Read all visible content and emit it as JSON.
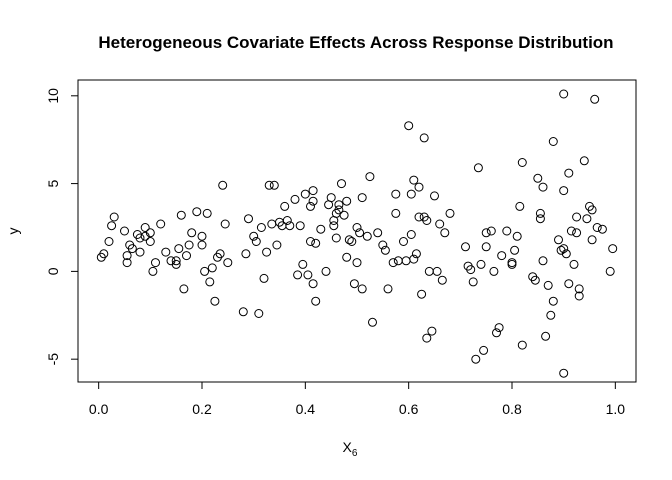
{
  "chart_data": {
    "type": "scatter",
    "title": "Heterogeneous Covariate Effects Across Response Distribution",
    "xlabel": "X",
    "xlabel_subscript": "6",
    "ylabel": "y",
    "xlim": [
      -0.04,
      1.04
    ],
    "ylim": [
      -6.3,
      10.9
    ],
    "xticks": [
      0.0,
      0.2,
      0.4,
      0.6,
      0.8,
      1.0
    ],
    "xtick_labels": [
      "0.0",
      "0.2",
      "0.4",
      "0.6",
      "0.8",
      "1.0"
    ],
    "yticks": [
      -5,
      0,
      5,
      10
    ],
    "ytick_labels": [
      "-5",
      "0",
      "5",
      "10"
    ],
    "grid": false,
    "points": [
      [
        0.005,
        0.8
      ],
      [
        0.01,
        1.0
      ],
      [
        0.02,
        1.7
      ],
      [
        0.025,
        2.6
      ],
      [
        0.03,
        3.1
      ],
      [
        0.05,
        2.3
      ],
      [
        0.055,
        0.5
      ],
      [
        0.055,
        0.9
      ],
      [
        0.06,
        1.5
      ],
      [
        0.065,
        1.3
      ],
      [
        0.075,
        2.1
      ],
      [
        0.08,
        1.9
      ],
      [
        0.08,
        1.1
      ],
      [
        0.09,
        2.0
      ],
      [
        0.09,
        2.5
      ],
      [
        0.1,
        1.7
      ],
      [
        0.1,
        2.2
      ],
      [
        0.105,
        0.0
      ],
      [
        0.11,
        0.5
      ],
      [
        0.12,
        2.7
      ],
      [
        0.13,
        1.1
      ],
      [
        0.14,
        0.6
      ],
      [
        0.15,
        0.6
      ],
      [
        0.15,
        0.4
      ],
      [
        0.155,
        1.3
      ],
      [
        0.16,
        3.2
      ],
      [
        0.165,
        -1.0
      ],
      [
        0.17,
        0.9
      ],
      [
        0.175,
        1.5
      ],
      [
        0.18,
        2.2
      ],
      [
        0.19,
        3.4
      ],
      [
        0.2,
        1.5
      ],
      [
        0.2,
        2.0
      ],
      [
        0.205,
        0.0
      ],
      [
        0.21,
        3.3
      ],
      [
        0.215,
        -0.6
      ],
      [
        0.22,
        0.2
      ],
      [
        0.225,
        -1.7
      ],
      [
        0.23,
        0.8
      ],
      [
        0.235,
        1.0
      ],
      [
        0.24,
        4.9
      ],
      [
        0.245,
        2.7
      ],
      [
        0.25,
        0.5
      ],
      [
        0.28,
        -2.3
      ],
      [
        0.285,
        1.0
      ],
      [
        0.29,
        3.0
      ],
      [
        0.3,
        2.0
      ],
      [
        0.305,
        1.7
      ],
      [
        0.31,
        -2.4
      ],
      [
        0.315,
        2.5
      ],
      [
        0.32,
        -0.4
      ],
      [
        0.325,
        1.1
      ],
      [
        0.33,
        4.9
      ],
      [
        0.335,
        2.7
      ],
      [
        0.34,
        4.9
      ],
      [
        0.345,
        1.5
      ],
      [
        0.35,
        2.8
      ],
      [
        0.355,
        2.6
      ],
      [
        0.36,
        3.7
      ],
      [
        0.365,
        2.9
      ],
      [
        0.37,
        2.6
      ],
      [
        0.38,
        4.1
      ],
      [
        0.385,
        -0.2
      ],
      [
        0.39,
        2.6
      ],
      [
        0.395,
        0.4
      ],
      [
        0.4,
        4.4
      ],
      [
        0.405,
        -0.2
      ],
      [
        0.41,
        1.7
      ],
      [
        0.41,
        3.7
      ],
      [
        0.415,
        4.6
      ],
      [
        0.415,
        4.0
      ],
      [
        0.415,
        -0.7
      ],
      [
        0.42,
        -1.7
      ],
      [
        0.42,
        1.6
      ],
      [
        0.43,
        2.4
      ],
      [
        0.44,
        0.0
      ],
      [
        0.445,
        3.8
      ],
      [
        0.45,
        4.2
      ],
      [
        0.455,
        2.9
      ],
      [
        0.455,
        2.6
      ],
      [
        0.46,
        1.9
      ],
      [
        0.46,
        3.3
      ],
      [
        0.465,
        3.5
      ],
      [
        0.465,
        3.8
      ],
      [
        0.47,
        5.0
      ],
      [
        0.475,
        3.2
      ],
      [
        0.48,
        0.8
      ],
      [
        0.48,
        4.0
      ],
      [
        0.485,
        1.8
      ],
      [
        0.49,
        1.7
      ],
      [
        0.495,
        -0.7
      ],
      [
        0.5,
        0.5
      ],
      [
        0.5,
        2.5
      ],
      [
        0.505,
        2.2
      ],
      [
        0.51,
        -1.0
      ],
      [
        0.51,
        4.2
      ],
      [
        0.52,
        2.0
      ],
      [
        0.525,
        5.4
      ],
      [
        0.53,
        -2.9
      ],
      [
        0.54,
        2.2
      ],
      [
        0.55,
        1.5
      ],
      [
        0.555,
        1.2
      ],
      [
        0.56,
        -1.0
      ],
      [
        0.57,
        0.5
      ],
      [
        0.575,
        3.3
      ],
      [
        0.575,
        4.4
      ],
      [
        0.58,
        0.6
      ],
      [
        0.59,
        1.7
      ],
      [
        0.595,
        0.6
      ],
      [
        0.6,
        8.3
      ],
      [
        0.605,
        2.1
      ],
      [
        0.605,
        4.4
      ],
      [
        0.61,
        5.2
      ],
      [
        0.61,
        0.7
      ],
      [
        0.615,
        1.0
      ],
      [
        0.62,
        3.1
      ],
      [
        0.62,
        4.8
      ],
      [
        0.625,
        -1.3
      ],
      [
        0.63,
        3.1
      ],
      [
        0.63,
        7.6
      ],
      [
        0.635,
        -3.8
      ],
      [
        0.635,
        2.9
      ],
      [
        0.64,
        0.0
      ],
      [
        0.645,
        -3.4
      ],
      [
        0.65,
        4.3
      ],
      [
        0.655,
        0.0
      ],
      [
        0.66,
        2.7
      ],
      [
        0.665,
        -0.5
      ],
      [
        0.67,
        2.2
      ],
      [
        0.68,
        3.3
      ],
      [
        0.71,
        1.4
      ],
      [
        0.715,
        0.3
      ],
      [
        0.72,
        0.1
      ],
      [
        0.725,
        -0.6
      ],
      [
        0.73,
        -5.0
      ],
      [
        0.735,
        5.9
      ],
      [
        0.74,
        0.4
      ],
      [
        0.745,
        -4.5
      ],
      [
        0.75,
        1.4
      ],
      [
        0.75,
        2.2
      ],
      [
        0.76,
        2.3
      ],
      [
        0.765,
        0.0
      ],
      [
        0.77,
        -3.5
      ],
      [
        0.775,
        -3.2
      ],
      [
        0.78,
        0.9
      ],
      [
        0.79,
        2.3
      ],
      [
        0.8,
        0.4
      ],
      [
        0.8,
        0.5
      ],
      [
        0.805,
        1.2
      ],
      [
        0.81,
        2.0
      ],
      [
        0.815,
        3.7
      ],
      [
        0.82,
        6.2
      ],
      [
        0.82,
        -4.2
      ],
      [
        0.84,
        -0.3
      ],
      [
        0.845,
        -0.5
      ],
      [
        0.85,
        5.3
      ],
      [
        0.855,
        3.0
      ],
      [
        0.855,
        3.3
      ],
      [
        0.86,
        0.6
      ],
      [
        0.86,
        4.8
      ],
      [
        0.865,
        -3.7
      ],
      [
        0.87,
        -0.8
      ],
      [
        0.875,
        -2.5
      ],
      [
        0.88,
        -1.7
      ],
      [
        0.88,
        7.4
      ],
      [
        0.89,
        1.8
      ],
      [
        0.895,
        1.2
      ],
      [
        0.9,
        10.1
      ],
      [
        0.9,
        4.6
      ],
      [
        0.9,
        1.3
      ],
      [
        0.9,
        -5.8
      ],
      [
        0.905,
        1.0
      ],
      [
        0.91,
        -0.7
      ],
      [
        0.91,
        5.6
      ],
      [
        0.915,
        2.3
      ],
      [
        0.92,
        0.4
      ],
      [
        0.925,
        3.1
      ],
      [
        0.925,
        2.2
      ],
      [
        0.93,
        -1.0
      ],
      [
        0.93,
        -1.4
      ],
      [
        0.94,
        6.3
      ],
      [
        0.945,
        3.0
      ],
      [
        0.95,
        3.7
      ],
      [
        0.955,
        3.5
      ],
      [
        0.955,
        1.8
      ],
      [
        0.96,
        9.8
      ],
      [
        0.965,
        2.5
      ],
      [
        0.975,
        2.4
      ],
      [
        0.99,
        0.0
      ],
      [
        0.995,
        1.3
      ]
    ]
  }
}
